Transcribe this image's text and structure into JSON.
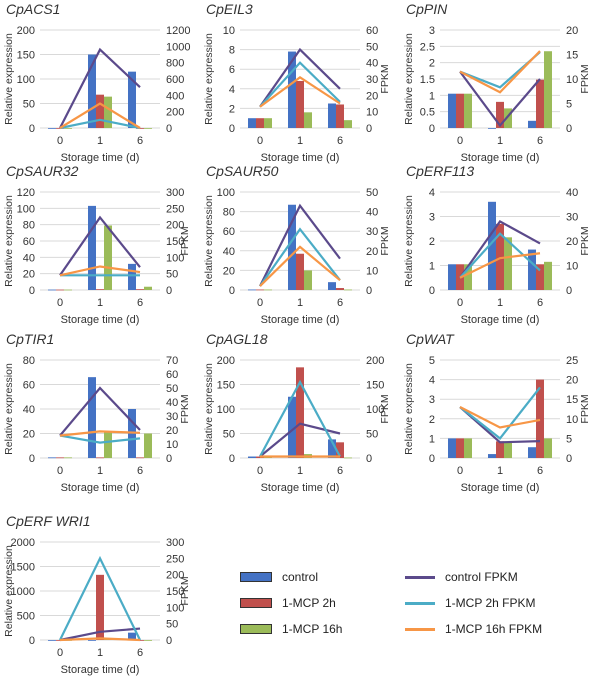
{
  "legend": {
    "bars": [
      {
        "label": "control",
        "color": "#4472C4"
      },
      {
        "label": "1-MCP 2h",
        "color": "#C0504D"
      },
      {
        "label": "1-MCP 16h",
        "color": "#9BBB59"
      }
    ],
    "lines": [
      {
        "label": "control FPKM",
        "color": "#5B4A8B"
      },
      {
        "label": "1-MCP 2h FPKM",
        "color": "#4BACC6"
      },
      {
        "label": "1-MCP 16h FPKM",
        "color": "#F79646"
      }
    ]
  },
  "chart_data": [
    {
      "type": "bar+line",
      "title": "CpACS1",
      "categories": [
        "0",
        "1",
        "6"
      ],
      "xlabel": "Storage time (d)",
      "ylabel": "Relative expression",
      "y2label": "",
      "ylim": [
        0,
        200
      ],
      "ystep": 50,
      "y2lim": [
        0,
        1200
      ],
      "y2step": 200,
      "bars": [
        {
          "name": "control",
          "values": [
            0,
            150,
            115
          ]
        },
        {
          "name": "1-MCP 2h",
          "values": [
            0,
            68,
            0
          ]
        },
        {
          "name": "1-MCP 16h",
          "values": [
            0,
            64,
            0
          ]
        }
      ],
      "lines": [
        {
          "name": "control FPKM",
          "values": [
            0,
            960,
            500
          ]
        },
        {
          "name": "1-MCP 2h FPKM",
          "values": [
            0,
            100,
            0
          ]
        },
        {
          "name": "1-MCP 16h FPKM",
          "values": [
            0,
            300,
            0
          ]
        }
      ]
    },
    {
      "type": "bar+line",
      "title": "CpEIL3",
      "categories": [
        "0",
        "1",
        "6"
      ],
      "xlabel": "Storage time (d)",
      "ylabel": "Relative expression",
      "y2label": "FPKM",
      "ylim": [
        0,
        10
      ],
      "ystep": 2,
      "y2lim": [
        0,
        60
      ],
      "y2step": 10,
      "bars": [
        {
          "name": "control",
          "values": [
            1,
            7.8,
            2.5
          ]
        },
        {
          "name": "1-MCP 2h",
          "values": [
            1,
            4.8,
            2.4
          ]
        },
        {
          "name": "1-MCP 16h",
          "values": [
            1,
            1.6,
            0.8
          ]
        }
      ],
      "lines": [
        {
          "name": "control FPKM",
          "values": [
            13,
            48,
            24
          ]
        },
        {
          "name": "1-MCP 2h FPKM",
          "values": [
            13,
            40,
            16
          ]
        },
        {
          "name": "1-MCP 16h FPKM",
          "values": [
            13,
            31,
            15
          ]
        }
      ]
    },
    {
      "type": "bar+line",
      "title": "CpPIN",
      "categories": [
        "0",
        "1",
        "6"
      ],
      "xlabel": "Storage time (d)",
      "ylabel": "Relative expression",
      "y2label": "FPKM",
      "ylim": [
        0,
        3
      ],
      "ystep": 0.5,
      "y2lim": [
        0,
        20
      ],
      "y2step": 5,
      "bars": [
        {
          "name": "control",
          "values": [
            1.05,
            0,
            0.22
          ]
        },
        {
          "name": "1-MCP 2h",
          "values": [
            1.05,
            0.8,
            1.48
          ]
        },
        {
          "name": "1-MCP 16h",
          "values": [
            1.05,
            0.6,
            2.35
          ]
        }
      ],
      "lines": [
        {
          "name": "control FPKM",
          "values": [
            11.5,
            0.5,
            10
          ]
        },
        {
          "name": "1-MCP 2h FPKM",
          "values": [
            11.5,
            8.3,
            15.5
          ]
        },
        {
          "name": "1-MCP 16h FPKM",
          "values": [
            11.5,
            7.3,
            15.7
          ]
        }
      ]
    },
    {
      "type": "bar+line",
      "title": "CpSAUR32",
      "categories": [
        "0",
        "1",
        "6"
      ],
      "xlabel": "Storage time (d)",
      "ylabel": "Relative expression",
      "y2label": "FPKM",
      "ylim": [
        0,
        120
      ],
      "ystep": 20,
      "y2lim": [
        0,
        300
      ],
      "y2step": 50,
      "bars": [
        {
          "name": "control",
          "values": [
            0.5,
            103,
            32
          ]
        },
        {
          "name": "1-MCP 2h",
          "values": [
            0.5,
            1,
            1
          ]
        },
        {
          "name": "1-MCP 16h",
          "values": [
            0.5,
            79,
            4
          ]
        }
      ],
      "lines": [
        {
          "name": "control FPKM",
          "values": [
            45,
            222,
            70
          ]
        },
        {
          "name": "1-MCP 2h FPKM",
          "values": [
            45,
            45,
            45
          ]
        },
        {
          "name": "1-MCP 16h FPKM",
          "values": [
            45,
            72,
            55
          ]
        }
      ]
    },
    {
      "type": "bar+line",
      "title": "CpSAUR50",
      "categories": [
        "0",
        "1",
        "6"
      ],
      "xlabel": "Storage time (d)",
      "ylabel": "Relative expression",
      "y2label": "FPKM",
      "ylim": [
        0,
        100
      ],
      "ystep": 20,
      "y2lim": [
        0,
        50
      ],
      "y2step": 10,
      "bars": [
        {
          "name": "control",
          "values": [
            0.5,
            87,
            8
          ]
        },
        {
          "name": "1-MCP 2h",
          "values": [
            0.5,
            37,
            2
          ]
        },
        {
          "name": "1-MCP 16h",
          "values": [
            0.5,
            20,
            0.5
          ]
        }
      ],
      "lines": [
        {
          "name": "control FPKM",
          "values": [
            2,
            43,
            16
          ]
        },
        {
          "name": "1-MCP 2h FPKM",
          "values": [
            2,
            31,
            5
          ]
        },
        {
          "name": "1-MCP 16h FPKM",
          "values": [
            2,
            22,
            5
          ]
        }
      ]
    },
    {
      "type": "bar+line",
      "title": "CpERF113",
      "categories": [
        "0",
        "1",
        "6"
      ],
      "xlabel": "Storage time (d)",
      "ylabel": "Relative expression",
      "y2label": "FPKM",
      "ylim": [
        0,
        4
      ],
      "ystep": 1,
      "y2lim": [
        0,
        40
      ],
      "y2step": 10,
      "bars": [
        {
          "name": "control",
          "values": [
            1.05,
            3.6,
            1.65
          ]
        },
        {
          "name": "1-MCP 2h",
          "values": [
            1.05,
            2.7,
            1.05
          ]
        },
        {
          "name": "1-MCP 16h",
          "values": [
            1.05,
            2.15,
            1.15
          ]
        }
      ],
      "lines": [
        {
          "name": "control FPKM",
          "values": [
            5,
            28,
            19
          ]
        },
        {
          "name": "1-MCP 2h FPKM",
          "values": [
            5,
            23,
            8
          ]
        },
        {
          "name": "1-MCP 16h FPKM",
          "values": [
            5,
            13,
            15
          ]
        }
      ]
    },
    {
      "type": "bar+line",
      "title": "CpTIR1",
      "categories": [
        "0",
        "1",
        "6"
      ],
      "xlabel": "Storage time (d)",
      "ylabel": "Relative expression",
      "y2label": "FPKM",
      "ylim": [
        0,
        80
      ],
      "ystep": 20,
      "y2lim": [
        0,
        70
      ],
      "y2step": 10,
      "bars": [
        {
          "name": "control",
          "values": [
            0.5,
            66,
            40
          ]
        },
        {
          "name": "1-MCP 2h",
          "values": [
            0.5,
            0.5,
            0.5
          ]
        },
        {
          "name": "1-MCP 16h",
          "values": [
            0.5,
            22,
            20
          ]
        }
      ],
      "lines": [
        {
          "name": "control FPKM",
          "values": [
            16,
            50,
            20
          ]
        },
        {
          "name": "1-MCP 2h FPKM",
          "values": [
            16,
            11,
            14
          ]
        },
        {
          "name": "1-MCP 16h FPKM",
          "values": [
            16,
            19,
            18
          ]
        }
      ]
    },
    {
      "type": "bar+line",
      "title": "CpAGL18",
      "categories": [
        "0",
        "1",
        "6"
      ],
      "xlabel": "Storage time (d)",
      "ylabel": "Relative expression",
      "y2label": "FPKM",
      "ylim": [
        0,
        200
      ],
      "ystep": 50,
      "y2lim": [
        0,
        200
      ],
      "y2step": 50,
      "bars": [
        {
          "name": "control",
          "values": [
            3,
            125,
            38
          ]
        },
        {
          "name": "1-MCP 2h",
          "values": [
            3,
            185,
            32
          ]
        },
        {
          "name": "1-MCP 16h",
          "values": [
            3,
            8,
            1
          ]
        }
      ],
      "lines": [
        {
          "name": "control FPKM",
          "values": [
            3,
            70,
            50
          ]
        },
        {
          "name": "1-MCP 2h FPKM",
          "values": [
            3,
            155,
            3
          ]
        },
        {
          "name": "1-MCP 16h FPKM",
          "values": [
            3,
            3,
            3
          ]
        }
      ]
    },
    {
      "type": "bar+line",
      "title": "CpWAT",
      "categories": [
        "0",
        "1",
        "6"
      ],
      "xlabel": "Storage time (d)",
      "ylabel": "Relative expression",
      "y2label": "FPKM",
      "ylim": [
        0,
        5
      ],
      "ystep": 1,
      "y2lim": [
        0,
        25
      ],
      "y2step": 5,
      "bars": [
        {
          "name": "control",
          "values": [
            1,
            0.2,
            0.55
          ]
        },
        {
          "name": "1-MCP 2h",
          "values": [
            1,
            0.85,
            4
          ]
        },
        {
          "name": "1-MCP 16h",
          "values": [
            1,
            0.8,
            1
          ]
        }
      ],
      "lines": [
        {
          "name": "control FPKM",
          "values": [
            13,
            4,
            4.3
          ]
        },
        {
          "name": "1-MCP 2h FPKM",
          "values": [
            13,
            5,
            18
          ]
        },
        {
          "name": "1-MCP 16h FPKM",
          "values": [
            13,
            7.8,
            9.7
          ]
        }
      ]
    },
    {
      "type": "bar+line",
      "title": "CpERF WRI1",
      "categories": [
        "0",
        "1",
        "6"
      ],
      "xlabel": "Storage time (d)",
      "ylabel": "Relative expression",
      "y2label": "FPKM",
      "ylim": [
        0,
        2000
      ],
      "ystep": 500,
      "y2lim": [
        0,
        300
      ],
      "y2step": 50,
      "bars": [
        {
          "name": "control",
          "values": [
            0,
            0,
            150
          ]
        },
        {
          "name": "1-MCP 2h",
          "values": [
            0,
            1330,
            0
          ]
        },
        {
          "name": "1-MCP 16h",
          "values": [
            0,
            30,
            0
          ]
        }
      ],
      "lines": [
        {
          "name": "control FPKM",
          "values": [
            0,
            25,
            35
          ]
        },
        {
          "name": "1-MCP 2h FPKM",
          "values": [
            0,
            250,
            0
          ]
        },
        {
          "name": "1-MCP 16h FPKM",
          "values": [
            0,
            5,
            0
          ]
        }
      ]
    }
  ]
}
